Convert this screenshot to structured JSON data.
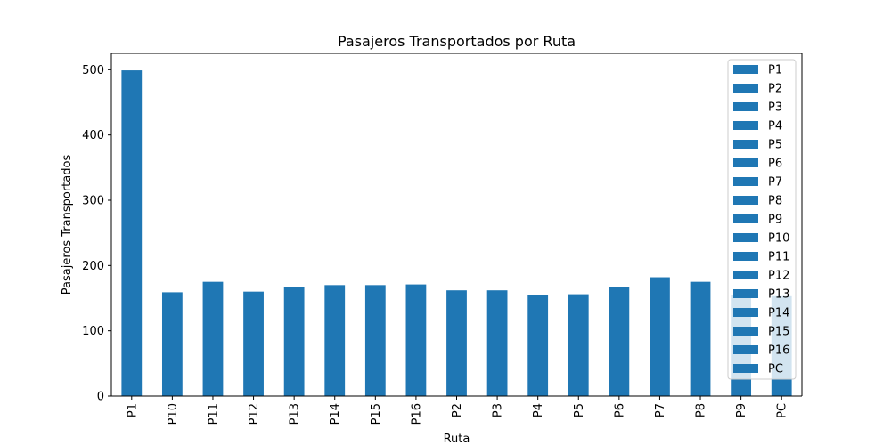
{
  "chart_data": {
    "type": "bar",
    "title": "Pasajeros Transportados por Ruta",
    "xlabel": "Ruta",
    "ylabel": "Pasajeros Transportados",
    "categories": [
      "P1",
      "P10",
      "P11",
      "P12",
      "P13",
      "P14",
      "P15",
      "P16",
      "P2",
      "P3",
      "P4",
      "P5",
      "P6",
      "P7",
      "P8",
      "P9",
      "PC"
    ],
    "values": [
      499,
      159,
      175,
      160,
      167,
      170,
      170,
      171,
      162,
      162,
      155,
      156,
      167,
      182,
      175,
      155,
      153
    ],
    "ylim": [
      0,
      525
    ],
    "yticks": [
      0,
      100,
      200,
      300,
      400,
      500
    ],
    "bar_color": "#1f77b4",
    "grid": false,
    "legend": {
      "placement": "upper-right",
      "entries": [
        "P1",
        "P2",
        "P3",
        "P4",
        "P5",
        "P6",
        "P7",
        "P8",
        "P9",
        "P10",
        "P11",
        "P12",
        "P13",
        "P14",
        "P15",
        "P16",
        "PC"
      ]
    }
  }
}
